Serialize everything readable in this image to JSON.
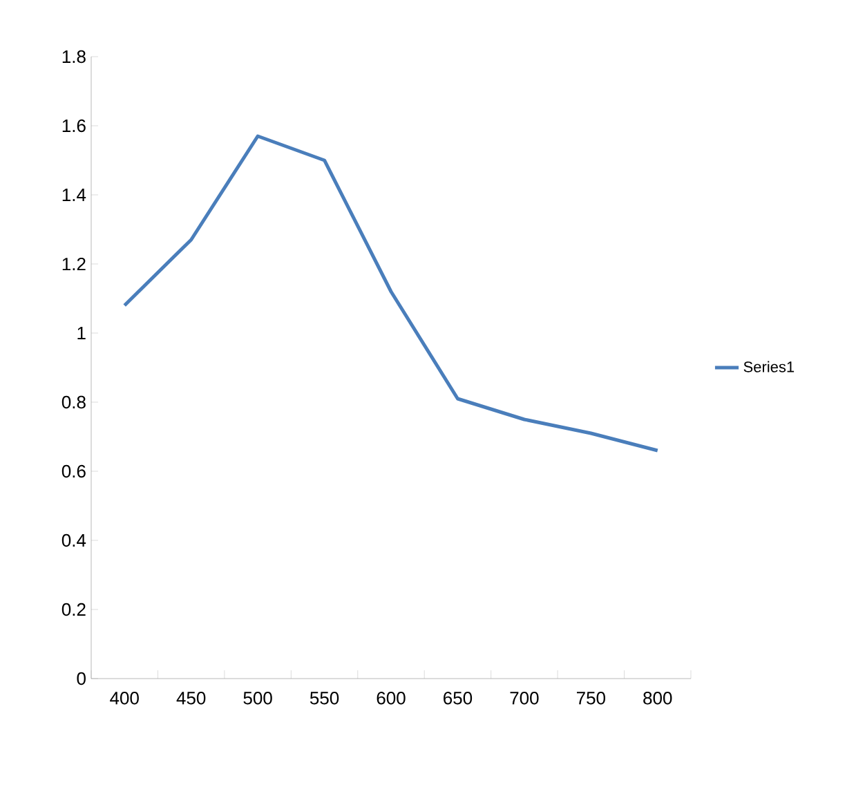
{
  "chart_data": {
    "type": "line",
    "categories": [
      "400",
      "450",
      "500",
      "550",
      "600",
      "650",
      "700",
      "750",
      "800"
    ],
    "series": [
      {
        "name": "Series1",
        "color": "#4a7ebb",
        "values": [
          1.08,
          1.27,
          1.57,
          1.5,
          1.12,
          0.81,
          0.75,
          0.71,
          0.66
        ]
      }
    ],
    "ylim": [
      0,
      1.8
    ],
    "yticks": [
      0,
      {
        "value": 0.2,
        "label": "0.2"
      },
      {
        "value": 0.4,
        "label": "0.4"
      },
      {
        "value": 0.6,
        "label": "0.6"
      },
      {
        "value": 0.8,
        "label": "0.8"
      },
      1,
      {
        "value": 1.2,
        "label": "1.2"
      },
      {
        "value": 1.4,
        "label": "1.4"
      },
      {
        "value": 1.6,
        "label": "1.6"
      },
      {
        "value": 1.8,
        "label": "1.8"
      }
    ],
    "legend": "right",
    "grid": false,
    "marker": "none",
    "line_style": "solid"
  }
}
